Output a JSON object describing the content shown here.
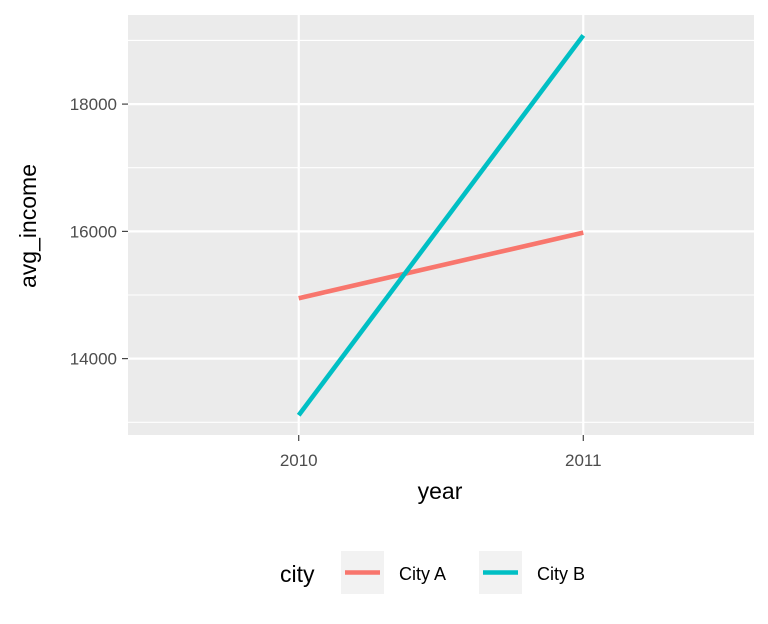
{
  "chart_data": {
    "type": "line",
    "title": "",
    "xlabel": "year",
    "ylabel": "avg_income",
    "x": [
      2010,
      2011
    ],
    "xticks": [
      "2010",
      "2011"
    ],
    "yticks": [
      14000,
      16000,
      18000
    ],
    "ytick_labels": [
      "14000",
      "16000",
      "18000"
    ],
    "xlim": [
      2009.4,
      2011.6
    ],
    "ylim": [
      12800,
      19400
    ],
    "grid": true,
    "legend": {
      "title": "city",
      "position": "bottom"
    },
    "series": [
      {
        "name": "City A",
        "color": "#F8766D",
        "values": [
          14950,
          15980
        ]
      },
      {
        "name": "City B",
        "color": "#00BFC4",
        "values": [
          13110,
          19080
        ]
      }
    ],
    "colors": {
      "panel_background": "#EBEBEB",
      "grid": "#FFFFFF",
      "legend_key_background": "#F2F2F2"
    }
  }
}
